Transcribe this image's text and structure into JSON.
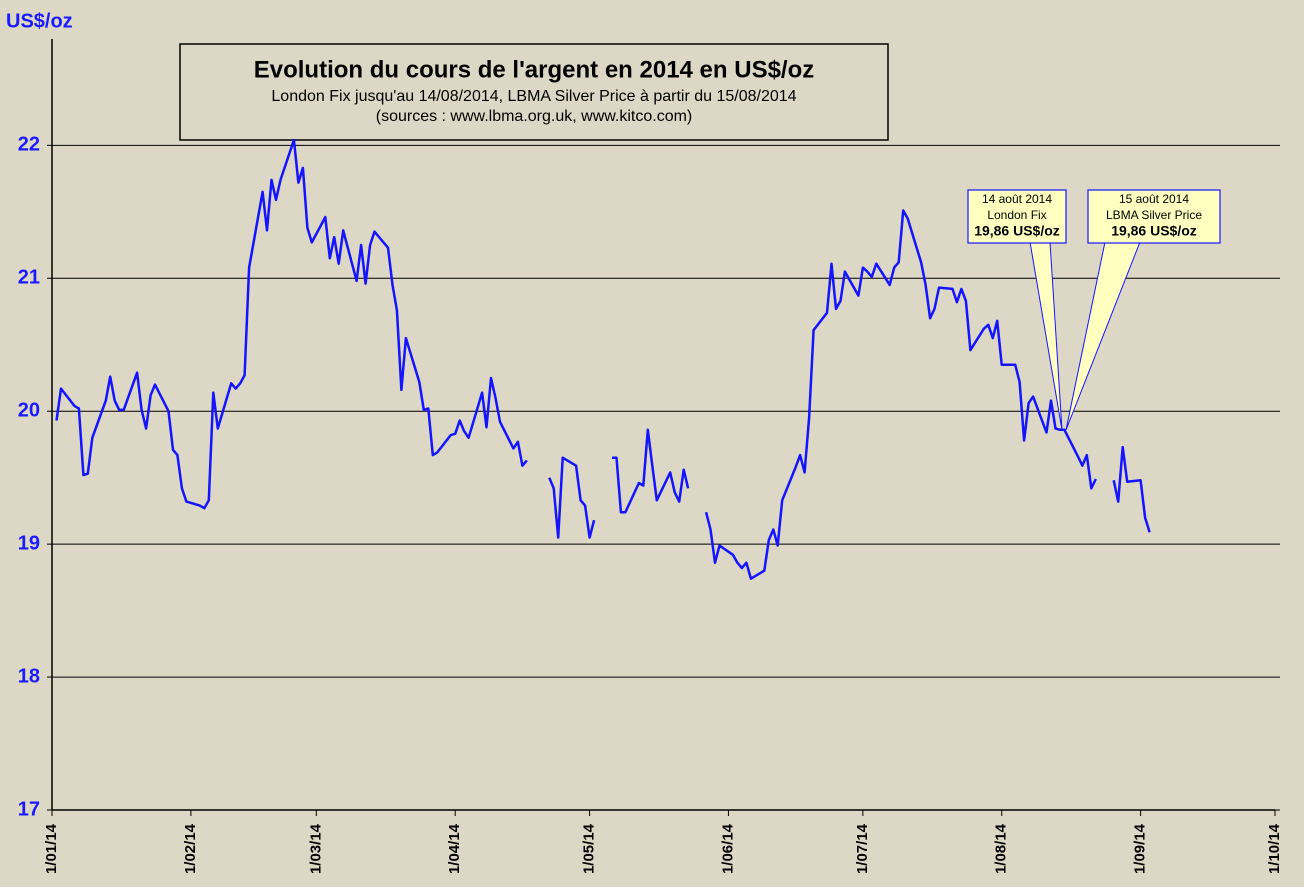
{
  "chart_data": {
    "type": "line",
    "title": "Evolution du cours de l'argent en 2014 en US$/oz",
    "subtitle": "London Fix jusqu'au 14/08/2014, LBMA  Silver Price à partir du 15/08/2014",
    "source": "(sources : www.lbma.org.uk, www.kitco.com)",
    "y_label": "US$/oz",
    "color": "#1414ff",
    "grid": true,
    "xlim": [
      "1/01/14",
      "1/10/14"
    ],
    "xticks": [
      "1/01/14",
      "1/02/14",
      "1/03/14",
      "1/04/14",
      "1/05/14",
      "1/06/14",
      "1/07/14",
      "1/08/14",
      "1/09/14",
      "1/10/14"
    ],
    "ylim": [
      17,
      22.8
    ],
    "yticks": [
      17,
      18,
      19,
      20,
      21,
      22
    ],
    "x": [
      "2/01/14",
      "3/01/14",
      "6/01/14",
      "7/01/14",
      "8/01/14",
      "9/01/14",
      "10/01/14",
      "13/01/14",
      "14/01/14",
      "15/01/14",
      "16/01/14",
      "17/01/14",
      "20/01/14",
      "21/01/14",
      "22/01/14",
      "23/01/14",
      "24/01/14",
      "27/01/14",
      "28/01/14",
      "29/01/14",
      "30/01/14",
      "31/01/14",
      "3/02/14",
      "4/02/14",
      "5/02/14",
      "6/02/14",
      "7/02/14",
      "10/02/14",
      "11/02/14",
      "12/02/14",
      "13/02/14",
      "14/02/14",
      "17/02/14",
      "18/02/14",
      "19/02/14",
      "20/02/14",
      "21/02/14",
      "24/02/14",
      "25/02/14",
      "26/02/14",
      "27/02/14",
      "28/02/14",
      "3/03/14",
      "4/03/14",
      "5/03/14",
      "6/03/14",
      "7/03/14",
      "10/03/14",
      "11/03/14",
      "12/03/14",
      "13/03/14",
      "14/03/14",
      "17/03/14",
      "18/03/14",
      "19/03/14",
      "20/03/14",
      "21/03/14",
      "24/03/14",
      "25/03/14",
      "26/03/14",
      "27/03/14",
      "28/03/14",
      "31/03/14",
      "1/04/14",
      "2/04/14",
      "3/04/14",
      "4/04/14",
      "7/04/14",
      "8/04/14",
      "9/04/14",
      "10/04/14",
      "11/04/14",
      "14/04/14",
      "15/04/14",
      "16/04/14",
      "17/04/14",
      "18/04/14",
      "21/04/14",
      "22/04/14",
      "23/04/14",
      "24/04/14",
      "25/04/14",
      "28/04/14",
      "29/04/14",
      "30/04/14",
      "1/05/14",
      "2/05/14",
      "5/05/14",
      "6/05/14",
      "7/05/14",
      "8/05/14",
      "9/05/14",
      "12/05/14",
      "13/05/14",
      "14/05/14",
      "15/05/14",
      "16/05/14",
      "19/05/14",
      "20/05/14",
      "21/05/14",
      "22/05/14",
      "23/05/14",
      "26/05/14",
      "27/05/14",
      "28/05/14",
      "29/05/14",
      "30/05/14",
      "2/06/14",
      "3/06/14",
      "4/06/14",
      "5/06/14",
      "6/06/14",
      "9/06/14",
      "10/06/14",
      "11/06/14",
      "12/06/14",
      "13/06/14",
      "16/06/14",
      "17/06/14",
      "18/06/14",
      "19/06/14",
      "20/06/14",
      "23/06/14",
      "24/06/14",
      "25/06/14",
      "26/06/14",
      "27/06/14",
      "30/06/14",
      "1/07/14",
      "2/07/14",
      "3/07/14",
      "4/07/14",
      "7/07/14",
      "8/07/14",
      "9/07/14",
      "10/07/14",
      "11/07/14",
      "14/07/14",
      "15/07/14",
      "16/07/14",
      "17/07/14",
      "18/07/14",
      "21/07/14",
      "22/07/14",
      "23/07/14",
      "24/07/14",
      "25/07/14",
      "28/07/14",
      "29/07/14",
      "30/07/14",
      "31/07/14",
      "1/08/14",
      "4/08/14",
      "5/08/14",
      "6/08/14",
      "7/08/14",
      "8/08/14",
      "11/08/14",
      "12/08/14",
      "13/08/14",
      "14/08/14",
      "15/08/14",
      "18/08/14",
      "19/08/14",
      "20/08/14",
      "21/08/14",
      "22/08/14",
      "25/08/14",
      "26/08/14",
      "27/08/14",
      "28/08/14",
      "29/08/14",
      "1/09/14",
      "2/09/14",
      "3/09/14"
    ],
    "values": [
      19.93,
      20.17,
      20.04,
      20.02,
      19.52,
      19.53,
      19.8,
      20.08,
      20.26,
      20.08,
      20.01,
      20.01,
      20.29,
      20.01,
      19.87,
      20.12,
      20.2,
      20.0,
      19.71,
      19.67,
      19.42,
      19.32,
      19.29,
      19.27,
      19.33,
      20.14,
      19.87,
      20.21,
      20.17,
      20.21,
      20.27,
      21.08,
      21.65,
      21.36,
      21.74,
      21.59,
      21.74,
      22.04,
      21.72,
      21.83,
      21.38,
      21.27,
      21.46,
      21.15,
      21.31,
      21.11,
      21.36,
      20.98,
      21.25,
      20.96,
      21.25,
      21.35,
      21.23,
      20.95,
      20.76,
      20.16,
      20.55,
      20.22,
      20.01,
      20.02,
      19.67,
      19.69,
      19.82,
      19.83,
      19.93,
      19.85,
      19.8,
      20.14,
      19.88,
      20.25,
      20.1,
      19.92,
      19.72,
      19.77,
      19.59,
      19.63,
      null,
      null,
      19.5,
      19.42,
      19.05,
      19.65,
      19.59,
      19.33,
      19.29,
      19.05,
      19.18,
      null,
      19.65,
      19.65,
      19.24,
      19.24,
      19.46,
      19.44,
      19.86,
      19.59,
      19.33,
      19.54,
      19.39,
      19.32,
      19.56,
      19.42,
      null,
      19.24,
      19.11,
      18.86,
      18.99,
      18.92,
      18.86,
      18.82,
      18.86,
      18.74,
      18.8,
      19.03,
      19.11,
      18.99,
      19.33,
      19.58,
      19.67,
      19.54,
      19.95,
      20.61,
      20.74,
      21.11,
      20.77,
      20.83,
      21.05,
      20.87,
      21.08,
      21.05,
      21.01,
      21.11,
      20.95,
      21.08,
      21.12,
      21.51,
      21.45,
      21.12,
      20.95,
      20.7,
      20.77,
      20.93,
      20.92,
      20.82,
      20.92,
      20.83,
      20.46,
      20.62,
      20.65,
      20.55,
      20.68,
      20.35,
      20.35,
      20.22,
      19.78,
      20.06,
      20.11,
      19.84,
      20.08,
      19.87,
      19.86,
      19.86,
      19.66,
      19.59,
      19.67,
      19.42,
      19.49,
      null,
      19.48,
      19.32,
      19.73,
      19.47,
      19.48,
      19.2,
      19.09
    ],
    "annotations": [
      {
        "lines": [
          "14 août 2014",
          "London Fix",
          "19,86 US$/oz"
        ]
      },
      {
        "lines": [
          "15 août 2014",
          "LBMA Silver Price",
          "19,86 US$/oz"
        ]
      }
    ]
  }
}
